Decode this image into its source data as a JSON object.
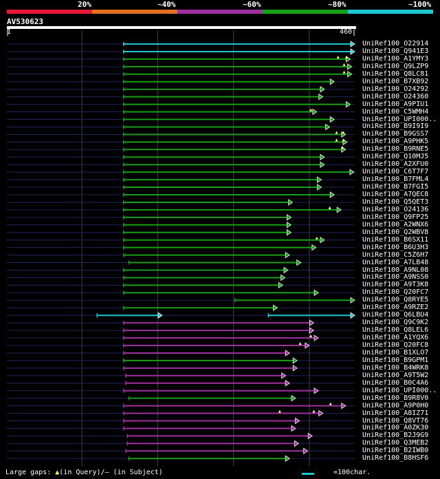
{
  "query": {
    "id": "AV530623",
    "length": 460,
    "ruler_start": "1",
    "ruler_end": "460"
  },
  "scale": {
    "segments": [
      {
        "label": "20%",
        "color": "#e8183c"
      },
      {
        "label": "~40%",
        "color": "#e0701e"
      },
      {
        "label": "~60%",
        "color": "#a030a0"
      },
      {
        "label": "~80%",
        "color": "#18a018"
      },
      {
        "label": "~100%",
        "color": "#1ec8d2"
      }
    ]
  },
  "colors": {
    "background": "#000000",
    "guide": "#24245a",
    "grid": "#444444",
    "marker": "#ffff66",
    "cyan": "#1ec8d2",
    "green": "#18a018",
    "purple": "#a030a0"
  },
  "footer": {
    "gaps_prefix": "Large gaps: ",
    "gaps_query": "(in Query)/",
    "gaps_subject": "– (in Subject)",
    "legend_text": "=100char."
  },
  "chart_data": {
    "type": "alignment-overview",
    "title": "AV530623",
    "x_range": [
      1,
      460
    ],
    "units": "query residue position",
    "hits": [
      {
        "name": "UniRef100_O22914",
        "color": "cyan",
        "start": 155,
        "end": 460
      },
      {
        "name": "UniRef100_Q941E3",
        "color": "cyan",
        "start": 155,
        "end": 460
      },
      {
        "name": "UniRef100_A1YMY3",
        "color": "green",
        "start": 155,
        "end": 454,
        "markers": [
          438,
          449
        ]
      },
      {
        "name": "UniRef100_Q9LZP9",
        "color": "green",
        "start": 155,
        "end": 456,
        "markers": [
          446
        ]
      },
      {
        "name": "UniRef100_Q8LC81",
        "color": "green",
        "start": 155,
        "end": 456,
        "markers": [
          446
        ]
      },
      {
        "name": "UniRef100_B7XB92",
        "color": "green",
        "start": 155,
        "end": 433
      },
      {
        "name": "UniRef100_O24292",
        "color": "green",
        "start": 155,
        "end": 420
      },
      {
        "name": "UniRef100_O24360",
        "color": "green",
        "start": 155,
        "end": 418
      },
      {
        "name": "UniRef100_A9PIU1",
        "color": "green",
        "start": 155,
        "end": 454
      },
      {
        "name": "UniRef100_C5WMH4",
        "color": "green",
        "start": 155,
        "end": 410,
        "markers": [
          402
        ]
      },
      {
        "name": "UniRef100_UPI000..",
        "color": "green",
        "start": 155,
        "end": 433
      },
      {
        "name": "UniRef100_B9I9I9",
        "color": "green",
        "start": 155,
        "end": 427
      },
      {
        "name": "UniRef100_B9GSS7",
        "color": "green",
        "start": 155,
        "end": 448,
        "markers": [
          436,
          445
        ]
      },
      {
        "name": "UniRef100_A9PHK5",
        "color": "green",
        "start": 155,
        "end": 450,
        "markers": [
          436,
          445
        ]
      },
      {
        "name": "UniRef100_B9RNE5",
        "color": "green",
        "start": 155,
        "end": 448,
        "markers": [
          444
        ]
      },
      {
        "name": "UniRef100_Q10MJ5",
        "color": "green",
        "start": 155,
        "end": 420
      },
      {
        "name": "UniRef100_A2XFU0",
        "color": "green",
        "start": 155,
        "end": 420
      },
      {
        "name": "UniRef100_C6T7F7",
        "color": "green",
        "start": 155,
        "end": 459
      },
      {
        "name": "UniRef100_B7FML4",
        "color": "green",
        "start": 155,
        "end": 416
      },
      {
        "name": "UniRef100_B7FGI5",
        "color": "green",
        "start": 155,
        "end": 416
      },
      {
        "name": "UniRef100_A7QEC8",
        "color": "green",
        "start": 155,
        "end": 433
      },
      {
        "name": "UniRef100_Q5QET3",
        "color": "green",
        "start": 155,
        "end": 378
      },
      {
        "name": "UniRef100_O24136",
        "color": "green",
        "start": 155,
        "end": 442,
        "markers": [
          427
        ]
      },
      {
        "name": "UniRef100_Q9FP25",
        "color": "green",
        "start": 155,
        "end": 376
      },
      {
        "name": "UniRef100_A2WNX6",
        "color": "green",
        "start": 155,
        "end": 376
      },
      {
        "name": "UniRef100_Q2WBV8",
        "color": "green",
        "start": 155,
        "end": 376
      },
      {
        "name": "UniRef100_B6SX11",
        "color": "green",
        "start": 155,
        "end": 420,
        "markers": [
          410
        ]
      },
      {
        "name": "UniRef100_B6U3H3",
        "color": "green",
        "start": 155,
        "end": 409
      },
      {
        "name": "UniRef100_C5Z6H7",
        "color": "green",
        "start": 155,
        "end": 374
      },
      {
        "name": "UniRef100_A7LB48",
        "color": "green",
        "start": 162,
        "end": 389
      },
      {
        "name": "UniRef100_A9NL08",
        "color": "green",
        "start": 155,
        "end": 372
      },
      {
        "name": "UniRef100_A9NSS0",
        "color": "green",
        "start": 155,
        "end": 368
      },
      {
        "name": "UniRef100_A9T3K8",
        "color": "green",
        "start": 155,
        "end": 365
      },
      {
        "name": "UniRef100_Q20FC7",
        "color": "green",
        "start": 155,
        "end": 412
      },
      {
        "name": "UniRef100_Q8RYE5",
        "color": "green",
        "start": 302,
        "end": 460
      },
      {
        "name": "UniRef100_A9RZE2",
        "color": "green",
        "start": 155,
        "end": 358
      },
      {
        "name": "UniRef100_Q6LBU4",
        "color": "cyan",
        "segments": [
          [
            120,
            206
          ],
          [
            346,
            460
          ]
        ]
      },
      {
        "name": "UniRef100_Q9C9K2",
        "color": "purple",
        "start": 155,
        "end": 406
      },
      {
        "name": "UniRef100_Q8LEL6",
        "color": "purple",
        "start": 155,
        "end": 406
      },
      {
        "name": "UniRef100_A1YQX6",
        "color": "purple",
        "start": 155,
        "end": 412,
        "markers": [
          402
        ]
      },
      {
        "name": "UniRef100_Q20FC8",
        "color": "purple",
        "start": 155,
        "end": 400,
        "markers": [
          388
        ]
      },
      {
        "name": "UniRef100_B1XLO7",
        "color": "purple",
        "start": 155,
        "end": 374
      },
      {
        "name": "UniRef100_B9GPM1",
        "color": "green",
        "start": 155,
        "end": 384
      },
      {
        "name": "UniRef100_B4WRK8",
        "color": "purple",
        "start": 155,
        "end": 384
      },
      {
        "name": "UniRef100_A9T5W2",
        "color": "purple",
        "start": 158,
        "end": 369
      },
      {
        "name": "UniRef100_B0C4A6",
        "color": "purple",
        "start": 158,
        "end": 374
      },
      {
        "name": "UniRef100_UPI000..",
        "color": "purple",
        "start": 155,
        "end": 412
      },
      {
        "name": "UniRef100_B9R8V0",
        "color": "green",
        "start": 162,
        "end": 382
      },
      {
        "name": "UniRef100_A9P0H0",
        "color": "purple",
        "start": 155,
        "end": 448,
        "markers": [
          428
        ]
      },
      {
        "name": "UniRef100_A8IZ71",
        "color": "purple",
        "start": 155,
        "end": 418,
        "markers": [
          361,
          406
        ]
      },
      {
        "name": "UniRef100_Q8VT76",
        "color": "purple",
        "start": 155,
        "end": 387
      },
      {
        "name": "UniRef100_A0ZK30",
        "color": "purple",
        "start": 155,
        "end": 382
      },
      {
        "name": "UniRef100_B2J9G9",
        "color": "purple",
        "start": 160,
        "end": 404
      },
      {
        "name": "UniRef100_Q3MEB2",
        "color": "purple",
        "start": 160,
        "end": 386
      },
      {
        "name": "UniRef100_B2IWB0",
        "color": "purple",
        "start": 158,
        "end": 398
      },
      {
        "name": "UniRef100_B8HSF6",
        "color": "green",
        "start": 162,
        "end": 374
      }
    ]
  }
}
